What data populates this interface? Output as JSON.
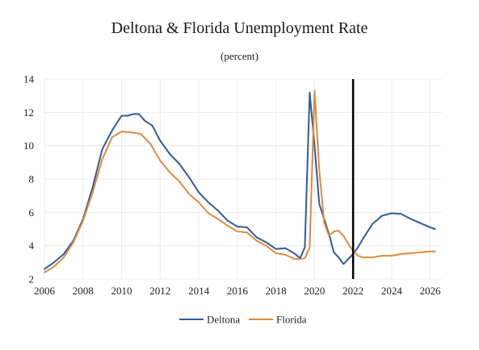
{
  "chart_data": {
    "type": "line",
    "title": "Deltona & Florida Unemployment Rate",
    "subtitle": "(percent)",
    "xlabel": "",
    "ylabel": "",
    "xlim": [
      2006,
      2026.6
    ],
    "ylim": [
      2,
      14
    ],
    "x_ticks": [
      2006,
      2008,
      2010,
      2012,
      2014,
      2016,
      2018,
      2020,
      2022,
      2024,
      2026
    ],
    "y_ticks": [
      2,
      4,
      6,
      8,
      10,
      12,
      14
    ],
    "grid": true,
    "legend_position": "bottom-center",
    "forecast_marker_x": 2022,
    "series": [
      {
        "name": "Deltona",
        "color": "#2e5c9e",
        "x": [
          2006.0,
          2006.5,
          2007.0,
          2007.5,
          2008.0,
          2008.5,
          2009.0,
          2009.5,
          2010.0,
          2010.3,
          2010.6,
          2010.9,
          2011.2,
          2011.6,
          2012.0,
          2012.5,
          2013.0,
          2013.5,
          2014.0,
          2014.5,
          2015.0,
          2015.5,
          2016.0,
          2016.5,
          2017.0,
          2017.5,
          2018.0,
          2018.5,
          2019.0,
          2019.25,
          2019.5,
          2019.75,
          2020.0,
          2020.25,
          2020.5,
          2020.75,
          2021.0,
          2021.25,
          2021.5,
          2021.75,
          2022.0,
          2022.25,
          2022.5,
          2023.0,
          2023.5,
          2024.0,
          2024.5,
          2025.0,
          2025.5,
          2026.0,
          2026.25
        ],
        "values": [
          2.6,
          3.0,
          3.5,
          4.3,
          5.6,
          7.5,
          9.8,
          10.9,
          11.8,
          11.8,
          11.9,
          11.9,
          11.5,
          11.2,
          10.3,
          9.5,
          8.9,
          8.1,
          7.2,
          6.6,
          6.1,
          5.5,
          5.15,
          5.1,
          4.5,
          4.2,
          3.8,
          3.85,
          3.5,
          3.25,
          3.9,
          13.2,
          10.0,
          6.5,
          5.6,
          4.7,
          3.6,
          3.3,
          2.9,
          3.2,
          3.5,
          3.9,
          4.4,
          5.3,
          5.8,
          5.95,
          5.9,
          5.6,
          5.35,
          5.1,
          5.0
        ]
      },
      {
        "name": "Florida",
        "color": "#e08a3c",
        "x": [
          2006.0,
          2006.5,
          2007.0,
          2007.5,
          2008.0,
          2008.5,
          2009.0,
          2009.5,
          2010.0,
          2010.5,
          2011.0,
          2011.5,
          2012.0,
          2012.5,
          2013.0,
          2013.5,
          2014.0,
          2014.5,
          2015.0,
          2015.5,
          2016.0,
          2016.5,
          2017.0,
          2017.5,
          2018.0,
          2018.5,
          2019.0,
          2019.25,
          2019.5,
          2019.75,
          2020.0,
          2020.25,
          2020.5,
          2020.75,
          2021.0,
          2021.25,
          2021.5,
          2021.75,
          2022.0,
          2022.25,
          2022.5,
          2023.0,
          2023.5,
          2024.0,
          2024.5,
          2025.0,
          2025.5,
          2026.0,
          2026.25
        ],
        "values": [
          2.4,
          2.75,
          3.3,
          4.2,
          5.5,
          7.2,
          9.2,
          10.5,
          10.85,
          10.8,
          10.7,
          10.1,
          9.1,
          8.4,
          7.85,
          7.1,
          6.6,
          5.95,
          5.6,
          5.2,
          4.85,
          4.8,
          4.3,
          4.0,
          3.55,
          3.45,
          3.2,
          3.2,
          3.25,
          3.9,
          13.3,
          8.5,
          5.4,
          4.6,
          4.85,
          4.9,
          4.6,
          4.1,
          3.7,
          3.4,
          3.3,
          3.3,
          3.4,
          3.4,
          3.5,
          3.55,
          3.6,
          3.65,
          3.65
        ]
      }
    ]
  }
}
